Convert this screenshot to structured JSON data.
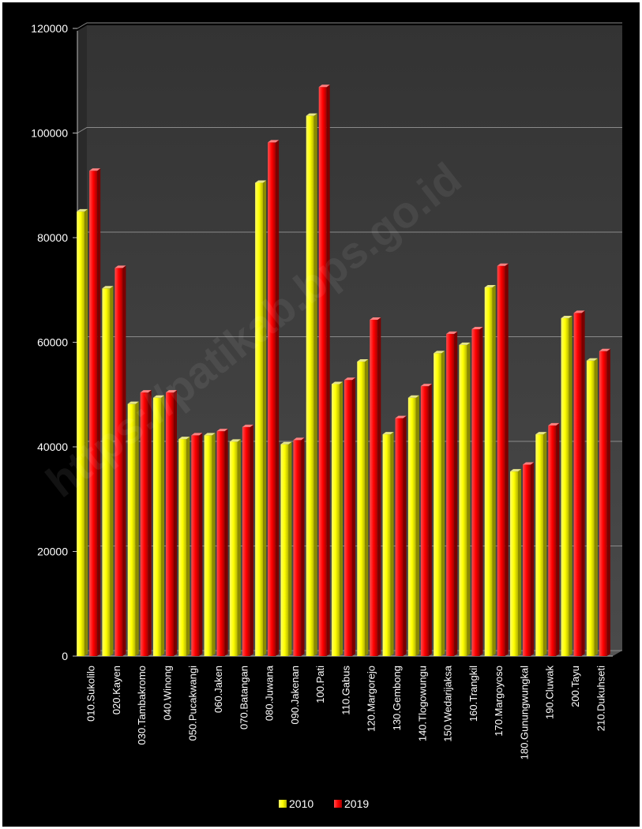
{
  "chart_data": {
    "type": "bar",
    "title": "",
    "xlabel": "",
    "ylabel": "",
    "ylim": [
      0,
      120000
    ],
    "yticks": [
      0,
      20000,
      40000,
      60000,
      80000,
      100000,
      120000
    ],
    "grid": true,
    "legend_position": "bottom",
    "categories": [
      "010.Sukolilo",
      "020.Kayen",
      "030.Tambakromo",
      "040.Winong",
      "050.Pucakwangi",
      "060.Jaken",
      "070.Batangan",
      "080.Juwana",
      "090.Jakenan",
      "100.Pati",
      "110.Gabus",
      "120.Margorejo",
      "130.Gembong",
      "140.Tlogowungu",
      "150.Wedarijaksa",
      "160.Trangkil",
      "170.Margoyoso",
      "180.Gunungwungkal",
      "190.Cluwak",
      "200.Tayu",
      "210.Dukuhseti"
    ],
    "series": [
      {
        "name": "2010",
        "color": "#ffff00",
        "values": [
          85000,
          70300,
          48200,
          49400,
          41500,
          42200,
          41000,
          90500,
          40500,
          103300,
          52000,
          56300,
          42400,
          49400,
          57900,
          59500,
          70500,
          35300,
          42400,
          64600,
          56500
        ]
      },
      {
        "name": "2019",
        "color": "#ff0000",
        "values": [
          92800,
          74200,
          50400,
          50400,
          42200,
          43000,
          43800,
          98200,
          41300,
          108800,
          52800,
          64300,
          45500,
          51600,
          61600,
          62500,
          74600,
          36600,
          44100,
          65600,
          58300
        ]
      }
    ],
    "watermark": "https://patikab.bps.go.id"
  }
}
